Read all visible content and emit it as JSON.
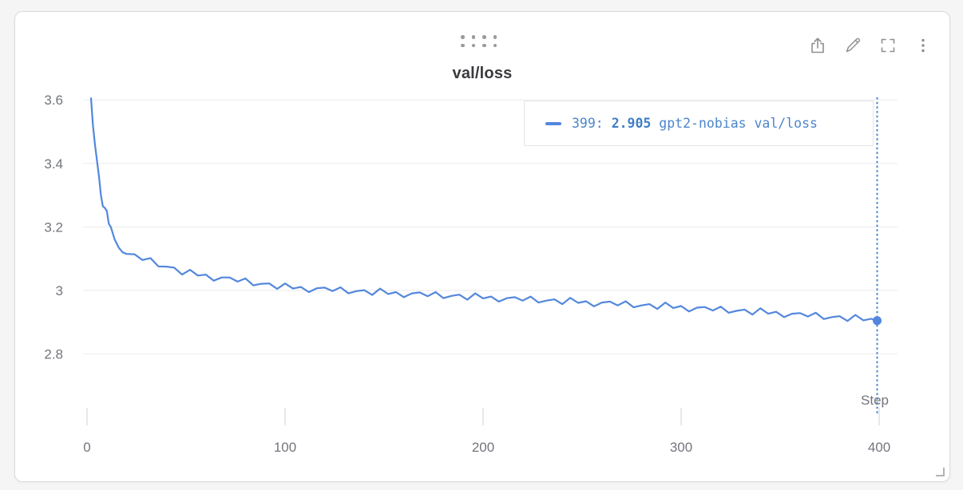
{
  "panel": {
    "title": "val/loss",
    "toolbar": [
      {
        "name": "share",
        "icon": "share-export-icon"
      },
      {
        "name": "edit",
        "icon": "pencil-icon"
      },
      {
        "name": "fullscreen",
        "icon": "fullscreen-expand-icon"
      },
      {
        "name": "menu",
        "icon": "kebab-menu-icon"
      }
    ]
  },
  "legend": {
    "step": "399:",
    "value": "2.905",
    "series": "gpt2-nobias val/loss"
  },
  "colors": {
    "line": "#5387dd",
    "cursor": "#4484ce",
    "legend_text": "#4b86cb",
    "grid": "#f0f0f1",
    "tick_mark": "#e8e8ea",
    "axis_text": "#73757d",
    "title": "#3a3a3e",
    "icon": "#8f8f93",
    "card_border": "#dcdcde",
    "page_bg": "#f5f5f6",
    "card_bg": "#ffffff"
  },
  "chart_data": {
    "type": "line",
    "title": "val/loss",
    "xlabel": "Step",
    "ylabel": "",
    "xlim": [
      0,
      409
    ],
    "ylim": [
      2.65,
      3.61
    ],
    "xticks": [
      0,
      100,
      200,
      300,
      400
    ],
    "yticks": [
      2.8,
      3,
      3.2,
      3.4,
      3.6
    ],
    "grid": "horizontal",
    "legend_position": "top-right",
    "cursor": {
      "step": 399,
      "value": 2.905
    },
    "series": [
      {
        "name": "gpt2-nobias val/loss",
        "color": "#5387dd",
        "points": [
          [
            2,
            3.605
          ],
          [
            3,
            3.52
          ],
          [
            4,
            3.46
          ],
          [
            5,
            3.41
          ],
          [
            6,
            3.36
          ],
          [
            7,
            3.3
          ],
          [
            8,
            3.265
          ],
          [
            9,
            3.26
          ],
          [
            10,
            3.25
          ],
          [
            11,
            3.21
          ],
          [
            12,
            3.2
          ],
          [
            14,
            3.16
          ],
          [
            16,
            3.135
          ],
          [
            18,
            3.12
          ],
          [
            20,
            3.115
          ],
          [
            24,
            3.114
          ],
          [
            28,
            3.096
          ],
          [
            32,
            3.102
          ],
          [
            36,
            3.076
          ],
          [
            40,
            3.075
          ],
          [
            44,
            3.072
          ],
          [
            48,
            3.05
          ],
          [
            52,
            3.065
          ],
          [
            56,
            3.047
          ],
          [
            60,
            3.05
          ],
          [
            64,
            3.031
          ],
          [
            68,
            3.041
          ],
          [
            72,
            3.041
          ],
          [
            76,
            3.028
          ],
          [
            80,
            3.038
          ],
          [
            84,
            3.016
          ],
          [
            88,
            3.021
          ],
          [
            92,
            3.022
          ],
          [
            96,
            3.005
          ],
          [
            100,
            3.022
          ],
          [
            104,
            3.006
          ],
          [
            108,
            3.011
          ],
          [
            112,
            2.995
          ],
          [
            116,
            3.007
          ],
          [
            120,
            3.009
          ],
          [
            124,
            2.998
          ],
          [
            128,
            3.01
          ],
          [
            132,
            2.991
          ],
          [
            136,
            2.998
          ],
          [
            140,
            3.001
          ],
          [
            144,
            2.986
          ],
          [
            148,
            3.006
          ],
          [
            152,
            2.989
          ],
          [
            156,
            2.995
          ],
          [
            160,
            2.979
          ],
          [
            164,
            2.991
          ],
          [
            168,
            2.994
          ],
          [
            172,
            2.982
          ],
          [
            176,
            2.995
          ],
          [
            180,
            2.976
          ],
          [
            184,
            2.983
          ],
          [
            188,
            2.987
          ],
          [
            192,
            2.971
          ],
          [
            196,
            2.991
          ],
          [
            200,
            2.975
          ],
          [
            204,
            2.981
          ],
          [
            208,
            2.965
          ],
          [
            212,
            2.976
          ],
          [
            216,
            2.979
          ],
          [
            220,
            2.968
          ],
          [
            224,
            2.981
          ],
          [
            228,
            2.962
          ],
          [
            232,
            2.968
          ],
          [
            236,
            2.972
          ],
          [
            240,
            2.957
          ],
          [
            244,
            2.977
          ],
          [
            248,
            2.961
          ],
          [
            252,
            2.966
          ],
          [
            256,
            2.95
          ],
          [
            260,
            2.962
          ],
          [
            264,
            2.965
          ],
          [
            268,
            2.953
          ],
          [
            272,
            2.966
          ],
          [
            276,
            2.947
          ],
          [
            280,
            2.953
          ],
          [
            284,
            2.957
          ],
          [
            288,
            2.942
          ],
          [
            292,
            2.962
          ],
          [
            296,
            2.945
          ],
          [
            300,
            2.951
          ],
          [
            304,
            2.934
          ],
          [
            308,
            2.946
          ],
          [
            312,
            2.948
          ],
          [
            316,
            2.937
          ],
          [
            320,
            2.949
          ],
          [
            324,
            2.93
          ],
          [
            328,
            2.936
          ],
          [
            332,
            2.94
          ],
          [
            336,
            2.924
          ],
          [
            340,
            2.944
          ],
          [
            344,
            2.927
          ],
          [
            348,
            2.933
          ],
          [
            352,
            2.916
          ],
          [
            356,
            2.927
          ],
          [
            360,
            2.929
          ],
          [
            364,
            2.918
          ],
          [
            368,
            2.93
          ],
          [
            372,
            2.91
          ],
          [
            376,
            2.916
          ],
          [
            380,
            2.919
          ],
          [
            384,
            2.904
          ],
          [
            388,
            2.923
          ],
          [
            392,
            2.906
          ],
          [
            396,
            2.911
          ],
          [
            399,
            2.905
          ]
        ]
      }
    ]
  }
}
